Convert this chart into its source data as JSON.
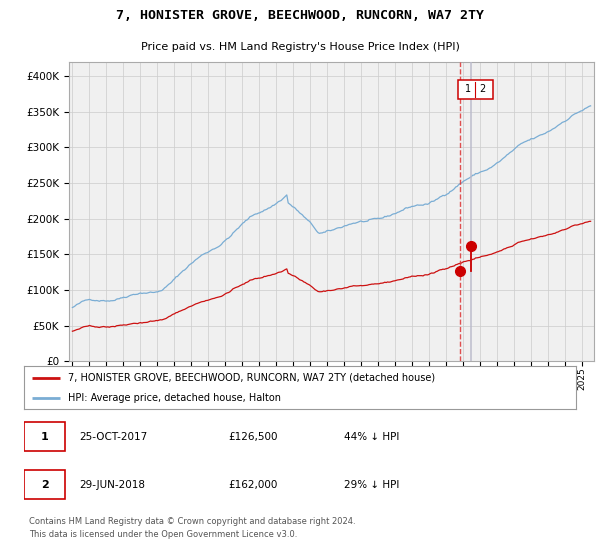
{
  "title": "7, HONISTER GROVE, BEECHWOOD, RUNCORN, WA7 2TY",
  "subtitle": "Price paid vs. HM Land Registry's House Price Index (HPI)",
  "legend_label_red": "7, HONISTER GROVE, BEECHWOOD, RUNCORN, WA7 2TY (detached house)",
  "legend_label_blue": "HPI: Average price, detached house, Halton",
  "annotation1_date": "25-OCT-2017",
  "annotation1_price": "£126,500",
  "annotation1_pct": "44% ↓ HPI",
  "annotation2_date": "29-JUN-2018",
  "annotation2_price": "£162,000",
  "annotation2_pct": "29% ↓ HPI",
  "footer": "Contains HM Land Registry data © Crown copyright and database right 2024.\nThis data is licensed under the Open Government Licence v3.0.",
  "sale1_year": 2017.81,
  "sale2_year": 2018.49,
  "sale1_price": 126500,
  "sale2_price": 162000,
  "ylim": [
    0,
    420000
  ],
  "xlim_start": 1994.8,
  "xlim_end": 2025.7,
  "hpi_color": "#7aadd4",
  "red_color": "#cc1111",
  "marker_color": "#cc0000",
  "vline1_color": "#dd3333",
  "vline2_color": "#bbbbcc",
  "grid_color": "#cccccc",
  "background_color": "#ffffff",
  "plot_bg_color": "#f0f0f0"
}
